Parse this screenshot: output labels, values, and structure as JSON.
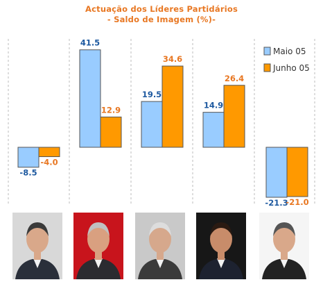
{
  "chart_data": {
    "type": "bar",
    "title": "Actuação dos Líderes Partidários",
    "subtitle": "- Saldo de Imagem (%)-",
    "categories": [
      "",
      "",
      "",
      "",
      ""
    ],
    "series": [
      {
        "name": "Maio 05",
        "color": "#99ccff",
        "values": [
          -8.5,
          41.5,
          19.5,
          14.9,
          -21.3
        ]
      },
      {
        "name": "Junho 05",
        "color": "#ff9900",
        "values": [
          -4.0,
          12.9,
          34.6,
          26.4,
          -21.0
        ]
      }
    ],
    "value_labels": [
      [
        "-8.5",
        "41.5",
        "19.5",
        "14.9",
        "-21.3"
      ],
      [
        "-4.0",
        "12.9",
        "34.6",
        "26.4",
        "-21.0"
      ]
    ],
    "label_colors": [
      "#1f5aa0",
      "#e87722"
    ],
    "grid": "vertical-dashed",
    "legend_position": "right"
  },
  "legend": {
    "maio": "Maio 05",
    "junho": "Junho 05"
  },
  "portraits": [
    {
      "name": "portrait-leader-1",
      "background": "#d8d8d8",
      "suit": "#2a2f3a",
      "skin": "#d9a88a",
      "hair": "#3a3a3a"
    },
    {
      "name": "portrait-leader-2",
      "background": "#c8141c",
      "suit": "#2b2b30",
      "skin": "#d9a080",
      "hair": "#c0c0c0"
    },
    {
      "name": "portrait-leader-3",
      "background": "#c9c9c9",
      "suit": "#3a3a3a",
      "skin": "#d6a88c",
      "hair": "#dddddd"
    },
    {
      "name": "portrait-leader-4",
      "background": "#171717",
      "suit": "#1d2230",
      "skin": "#c88c6a",
      "hair": "#2a1a12"
    },
    {
      "name": "portrait-leader-5",
      "background": "#f5f5f5",
      "suit": "#222222",
      "skin": "#d9a88a",
      "hair": "#555555"
    }
  ]
}
